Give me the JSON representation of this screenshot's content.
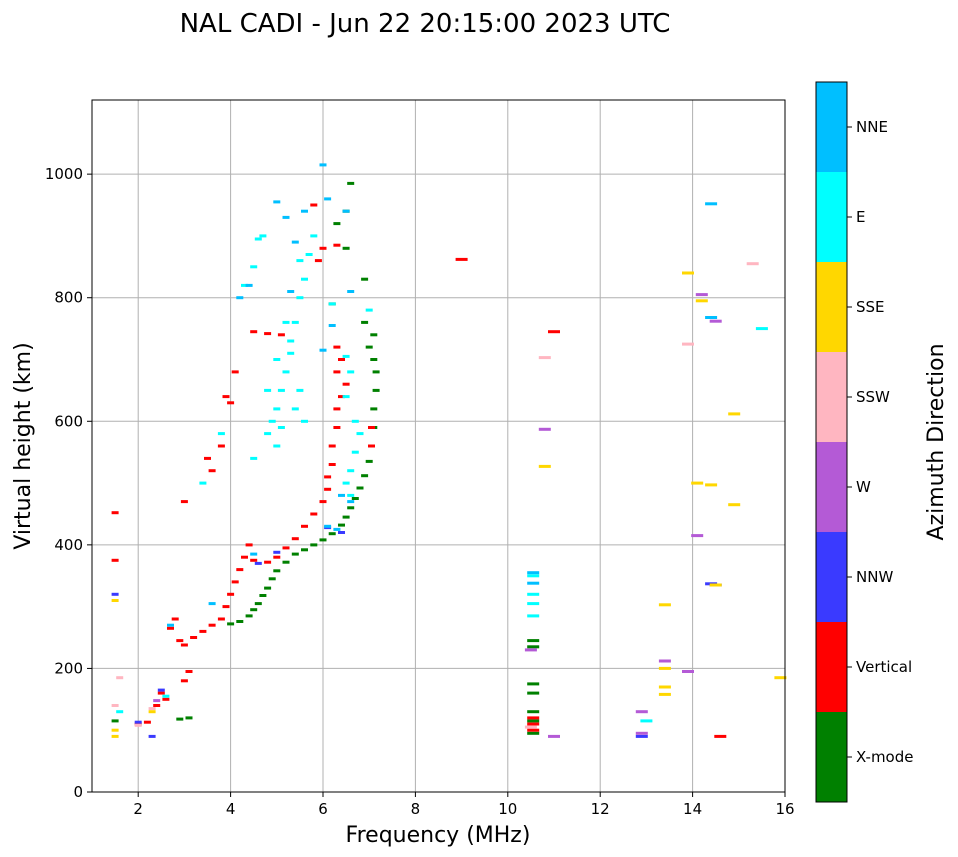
{
  "chart_data": {
    "type": "scatter",
    "title": "NAL CADI - Jun 22 20:15:00 2023 UTC",
    "xlabel": "Frequency (MHz)",
    "ylabel": "Virtual height (km)",
    "xlim": [
      1,
      16
    ],
    "ylim": [
      0,
      1120
    ],
    "xticks": [
      2,
      4,
      6,
      8,
      10,
      12,
      14,
      16
    ],
    "yticks": [
      0,
      200,
      400,
      600,
      800,
      1000
    ],
    "grid": true,
    "colorbar": {
      "label": "Azimuth Direction",
      "categories": [
        {
          "name": "X-mode",
          "color": "#008000"
        },
        {
          "name": "Vertical",
          "color": "#ff0000"
        },
        {
          "name": "NNW",
          "color": "#3a3aff"
        },
        {
          "name": "W",
          "color": "#b45ad6"
        },
        {
          "name": "SSW",
          "color": "#ffb6c1"
        },
        {
          "name": "SSE",
          "color": "#ffd700"
        },
        {
          "name": "E",
          "color": "#00ffff"
        },
        {
          "name": "NNE",
          "color": "#00bfff"
        }
      ]
    },
    "series": [
      {
        "name": "X-mode",
        "points": [
          [
            1.5,
            115
          ],
          [
            2.9,
            118
          ],
          [
            3.1,
            120
          ],
          [
            4.0,
            272
          ],
          [
            4.2,
            276
          ],
          [
            4.4,
            285
          ],
          [
            4.5,
            295
          ],
          [
            4.6,
            305
          ],
          [
            4.7,
            318
          ],
          [
            4.8,
            330
          ],
          [
            4.9,
            345
          ],
          [
            5.0,
            358
          ],
          [
            5.2,
            372
          ],
          [
            5.4,
            385
          ],
          [
            5.6,
            392
          ],
          [
            5.8,
            400
          ],
          [
            6.0,
            408
          ],
          [
            6.2,
            418
          ],
          [
            6.4,
            432
          ],
          [
            6.5,
            445
          ],
          [
            6.6,
            460
          ],
          [
            6.7,
            475
          ],
          [
            6.8,
            492
          ],
          [
            6.9,
            512
          ],
          [
            7.0,
            535
          ],
          [
            7.05,
            560
          ],
          [
            7.1,
            590
          ],
          [
            7.1,
            620
          ],
          [
            7.15,
            650
          ],
          [
            7.15,
            680
          ],
          [
            7.1,
            700
          ],
          [
            7.0,
            720
          ],
          [
            7.1,
            740
          ],
          [
            6.9,
            760
          ],
          [
            6.2,
            790
          ],
          [
            6.9,
            830
          ],
          [
            6.5,
            880
          ],
          [
            6.3,
            920
          ],
          [
            6.5,
            940
          ],
          [
            6.6,
            985
          ],
          [
            10.55,
            95
          ],
          [
            10.55,
            115
          ],
          [
            10.55,
            130
          ],
          [
            10.55,
            160
          ],
          [
            10.55,
            175
          ],
          [
            10.55,
            235
          ],
          [
            10.55,
            245
          ]
        ]
      },
      {
        "name": "Vertical",
        "points": [
          [
            1.5,
            375
          ],
          [
            1.5,
            452
          ],
          [
            2.0,
            110
          ],
          [
            2.2,
            113
          ],
          [
            2.4,
            140
          ],
          [
            2.5,
            160
          ],
          [
            2.6,
            150
          ],
          [
            2.7,
            265
          ],
          [
            2.8,
            280
          ],
          [
            2.9,
            245
          ],
          [
            3.0,
            238
          ],
          [
            3.0,
            180
          ],
          [
            3.1,
            195
          ],
          [
            3.2,
            250
          ],
          [
            3.4,
            260
          ],
          [
            3.6,
            270
          ],
          [
            3.8,
            280
          ],
          [
            3.9,
            300
          ],
          [
            4.0,
            320
          ],
          [
            4.1,
            340
          ],
          [
            4.2,
            360
          ],
          [
            4.3,
            380
          ],
          [
            4.5,
            375
          ],
          [
            4.8,
            372
          ],
          [
            5.0,
            380
          ],
          [
            5.2,
            395
          ],
          [
            5.4,
            410
          ],
          [
            5.6,
            430
          ],
          [
            5.8,
            450
          ],
          [
            6.0,
            470
          ],
          [
            6.1,
            490
          ],
          [
            6.1,
            510
          ],
          [
            6.2,
            530
          ],
          [
            6.2,
            560
          ],
          [
            6.3,
            590
          ],
          [
            6.3,
            620
          ],
          [
            6.4,
            640
          ],
          [
            6.5,
            660
          ],
          [
            6.3,
            680
          ],
          [
            6.4,
            700
          ],
          [
            6.3,
            720
          ],
          [
            7.05,
            560
          ],
          [
            7.05,
            590
          ],
          [
            4.0,
            630
          ],
          [
            3.9,
            640
          ],
          [
            3.8,
            560
          ],
          [
            3.6,
            520
          ],
          [
            3.5,
            540
          ],
          [
            4.5,
            745
          ],
          [
            4.8,
            742
          ],
          [
            5.1,
            740
          ],
          [
            4.1,
            680
          ],
          [
            3.0,
            470
          ],
          [
            5.9,
            860
          ],
          [
            6.0,
            880
          ],
          [
            6.3,
            885
          ],
          [
            5.8,
            950
          ],
          [
            9.0,
            862
          ],
          [
            10.55,
            110
          ],
          [
            10.55,
            100
          ],
          [
            10.55,
            120
          ],
          [
            11.0,
            745
          ],
          [
            14.6,
            90
          ],
          [
            4.4,
            400
          ]
        ]
      },
      {
        "name": "NNW",
        "points": [
          [
            1.5,
            320
          ],
          [
            2.0,
            113
          ],
          [
            2.3,
            90
          ],
          [
            2.5,
            165
          ],
          [
            4.6,
            370
          ],
          [
            5.0,
            388
          ],
          [
            6.1,
            428
          ],
          [
            6.4,
            420
          ],
          [
            12.9,
            90
          ],
          [
            14.4,
            337
          ],
          [
            14.5,
            335
          ]
        ]
      },
      {
        "name": "W",
        "points": [
          [
            2.4,
            148
          ],
          [
            10.5,
            230
          ],
          [
            10.8,
            587
          ],
          [
            11.0,
            90
          ],
          [
            12.9,
            95
          ],
          [
            12.9,
            130
          ],
          [
            13.4,
            212
          ],
          [
            13.9,
            195
          ],
          [
            14.1,
            415
          ],
          [
            14.2,
            805
          ],
          [
            14.5,
            762
          ]
        ]
      },
      {
        "name": "SSW",
        "points": [
          [
            1.6,
            185
          ],
          [
            1.5,
            140
          ],
          [
            2.0,
            108
          ],
          [
            2.3,
            135
          ],
          [
            10.5,
            105
          ],
          [
            10.8,
            703
          ],
          [
            13.9,
            725
          ],
          [
            15.3,
            855
          ]
        ]
      },
      {
        "name": "SSE",
        "points": [
          [
            1.5,
            90
          ],
          [
            1.5,
            100
          ],
          [
            1.5,
            310
          ],
          [
            2.3,
            130
          ],
          [
            10.8,
            527
          ],
          [
            13.4,
            303
          ],
          [
            13.4,
            200
          ],
          [
            13.4,
            170
          ],
          [
            13.4,
            158
          ],
          [
            13.9,
            840
          ],
          [
            14.1,
            500
          ],
          [
            14.2,
            795
          ],
          [
            14.4,
            497
          ],
          [
            14.5,
            335
          ],
          [
            14.9,
            612
          ],
          [
            14.9,
            465
          ],
          [
            15.9,
            185
          ]
        ]
      },
      {
        "name": "E",
        "points": [
          [
            1.6,
            130
          ],
          [
            2.6,
            155
          ],
          [
            3.4,
            500
          ],
          [
            3.8,
            580
          ],
          [
            4.5,
            540
          ],
          [
            4.6,
            895
          ],
          [
            5.0,
            700
          ],
          [
            4.8,
            650
          ],
          [
            5.0,
            620
          ],
          [
            5.1,
            590
          ],
          [
            5.2,
            680
          ],
          [
            5.3,
            710
          ],
          [
            5.4,
            760
          ],
          [
            5.5,
            800
          ],
          [
            5.6,
            830
          ],
          [
            5.7,
            870
          ],
          [
            5.5,
            650
          ],
          [
            5.2,
            760
          ],
          [
            5.8,
            900
          ],
          [
            4.9,
            600
          ],
          [
            4.8,
            580
          ],
          [
            5.1,
            650
          ],
          [
            5.6,
            600
          ],
          [
            5.4,
            620
          ],
          [
            5.0,
            560
          ],
          [
            4.7,
            900
          ],
          [
            4.5,
            850
          ],
          [
            4.3,
            820
          ],
          [
            5.3,
            730
          ],
          [
            5.5,
            860
          ],
          [
            6.2,
            790
          ],
          [
            6.5,
            705
          ],
          [
            6.6,
            680
          ],
          [
            6.5,
            640
          ],
          [
            6.7,
            600
          ],
          [
            6.8,
            580
          ],
          [
            6.7,
            550
          ],
          [
            6.6,
            520
          ],
          [
            6.5,
            500
          ],
          [
            6.6,
            480
          ],
          [
            7.0,
            780
          ],
          [
            10.55,
            285
          ],
          [
            10.55,
            305
          ],
          [
            10.55,
            320
          ],
          [
            10.55,
            350
          ],
          [
            13.0,
            115
          ],
          [
            15.5,
            750
          ]
        ]
      },
      {
        "name": "NNE",
        "points": [
          [
            2.7,
            270
          ],
          [
            3.6,
            305
          ],
          [
            4.2,
            800
          ],
          [
            4.4,
            820
          ],
          [
            4.5,
            385
          ],
          [
            5.0,
            955
          ],
          [
            5.2,
            930
          ],
          [
            5.4,
            890
          ],
          [
            5.3,
            810
          ],
          [
            5.6,
            940
          ],
          [
            6.0,
            1015
          ],
          [
            6.1,
            960
          ],
          [
            6.5,
            940
          ],
          [
            6.6,
            810
          ],
          [
            6.2,
            755
          ],
          [
            6.0,
            715
          ],
          [
            6.4,
            480
          ],
          [
            6.6,
            470
          ],
          [
            6.1,
            430
          ],
          [
            6.3,
            425
          ],
          [
            10.55,
            338
          ],
          [
            10.55,
            355
          ],
          [
            14.4,
            952
          ],
          [
            14.4,
            768
          ]
        ]
      }
    ]
  }
}
